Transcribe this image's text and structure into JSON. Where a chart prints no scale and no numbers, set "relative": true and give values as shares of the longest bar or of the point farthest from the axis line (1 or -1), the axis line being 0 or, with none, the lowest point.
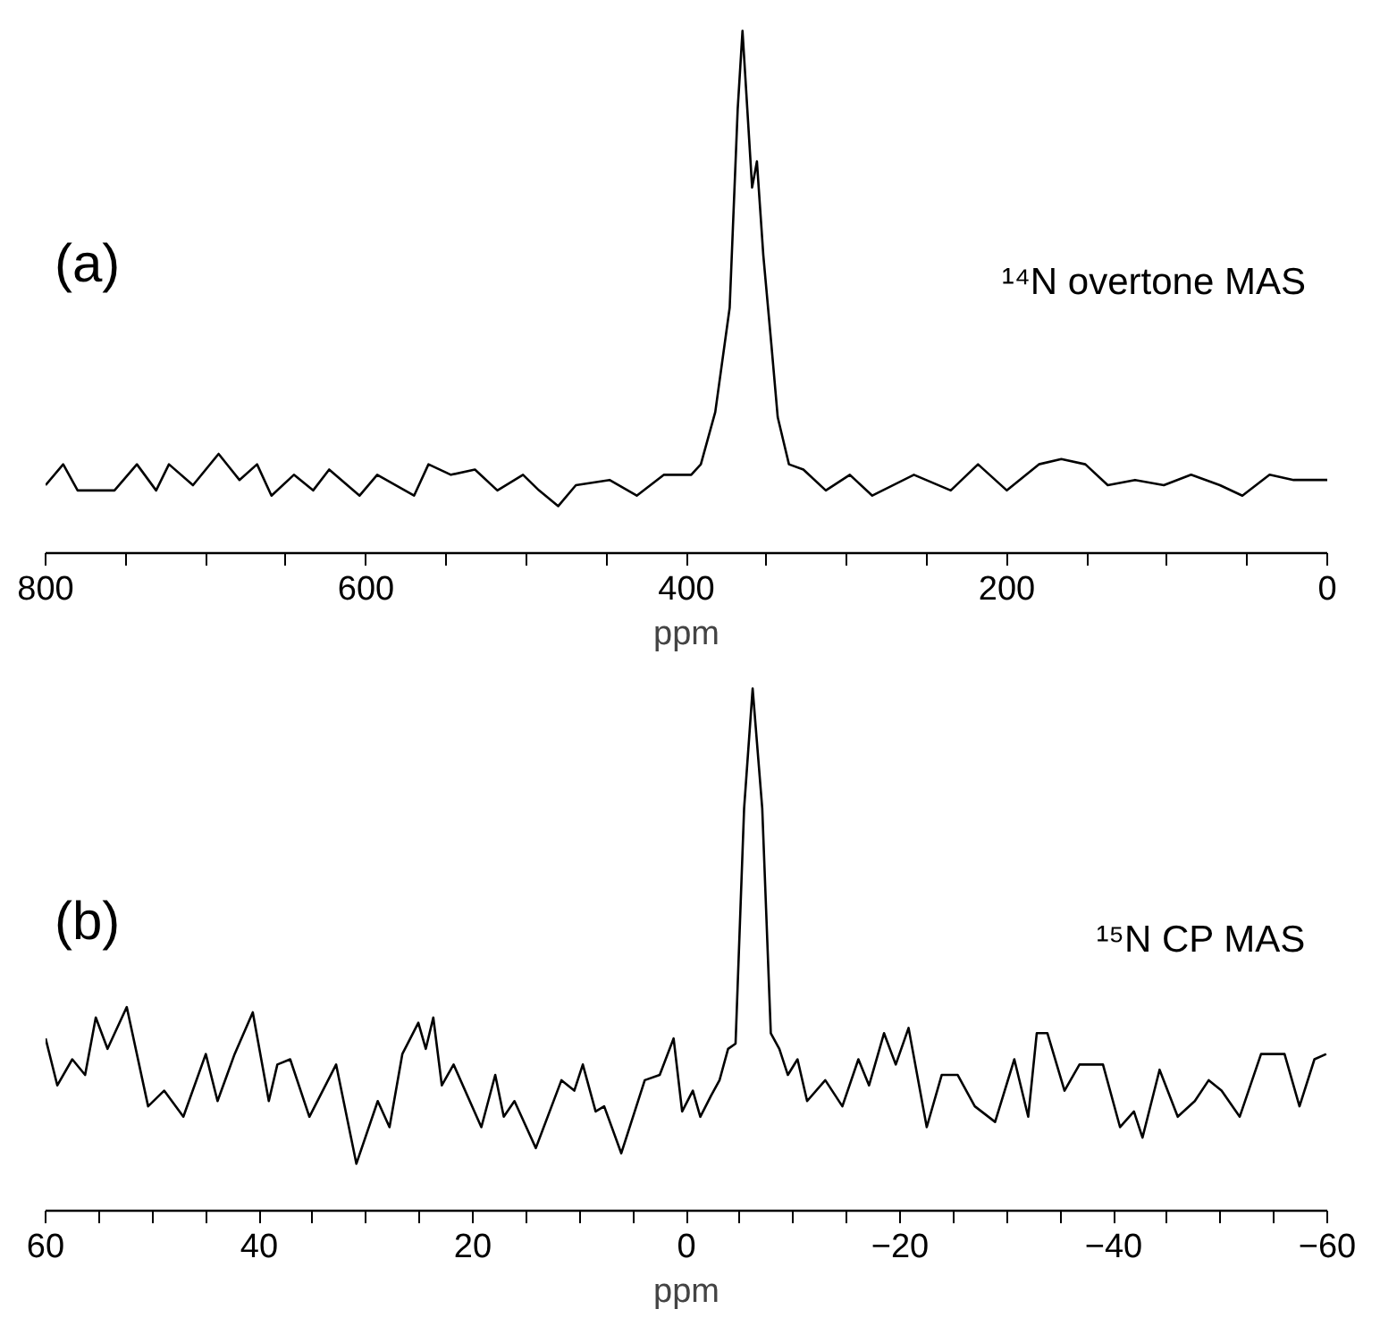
{
  "chart_data": [
    {
      "type": "line",
      "relative": true,
      "xlabel": "ppm",
      "annotations": [
        "(a)",
        "¹⁴N overtone MAS"
      ],
      "xlim": [
        800,
        0
      ],
      "xticks": [
        800,
        600,
        400,
        200,
        0
      ],
      "x": [
        800,
        789,
        780,
        757,
        743,
        731,
        723,
        708,
        692,
        679,
        668,
        659,
        645,
        633,
        623,
        604,
        593,
        570,
        561,
        547,
        532,
        518,
        502,
        492,
        480,
        469,
        448,
        431,
        414,
        397,
        391,
        382,
        373,
        368,
        365,
        362,
        359,
        356,
        352,
        347,
        343,
        336,
        327,
        313,
        298,
        284,
        258,
        235,
        218,
        200,
        180,
        166,
        151,
        137,
        120,
        102,
        85,
        67,
        53,
        36,
        21,
        0
      ],
      "series": [
        {
          "color": "#000000",
          "values": [
            0.13,
            0.17,
            0.12,
            0.12,
            0.17,
            0.12,
            0.17,
            0.13,
            0.19,
            0.14,
            0.17,
            0.11,
            0.15,
            0.12,
            0.16,
            0.11,
            0.15,
            0.11,
            0.17,
            0.15,
            0.16,
            0.12,
            0.15,
            0.12,
            0.09,
            0.13,
            0.14,
            0.11,
            0.15,
            0.15,
            0.17,
            0.27,
            0.47,
            0.85,
            1.0,
            0.85,
            0.7,
            0.75,
            0.57,
            0.4,
            0.26,
            0.17,
            0.16,
            0.12,
            0.15,
            0.11,
            0.15,
            0.12,
            0.17,
            0.12,
            0.17,
            0.18,
            0.17,
            0.13,
            0.14,
            0.13,
            0.15,
            0.13,
            0.11,
            0.15,
            0.14,
            0.14
          ]
        }
      ]
    },
    {
      "type": "line",
      "relative": true,
      "xlabel": "ppm",
      "annotations": [
        "(b)",
        "¹⁵N CP MAS"
      ],
      "xlim": [
        60,
        -60
      ],
      "xticks": [
        60,
        40,
        20,
        0,
        -20,
        -40,
        -60
      ],
      "x": [
        60,
        58.9,
        57.5,
        56.3,
        55.3,
        54.2,
        52.4,
        50.4,
        48.9,
        47.1,
        45,
        43.9,
        42.3,
        40.6,
        39.1,
        38.3,
        37.1,
        35.3,
        32.8,
        30.9,
        28.9,
        27.8,
        26.6,
        25.1,
        24.4,
        23.7,
        22.9,
        21.8,
        19.2,
        17.9,
        17.1,
        16.1,
        14.1,
        11.7,
        10.5,
        9.7,
        8.5,
        7.7,
        6.1,
        3.9,
        2.5,
        1.2,
        0.4,
        -0.6,
        -1.3,
        -2.3,
        -3.1,
        -3.9,
        -4.6,
        -5.4,
        -6.2,
        -7.1,
        -7.9,
        -8.7,
        -9.5,
        -10.4,
        -11.3,
        -13,
        -14.6,
        -16.1,
        -17.1,
        -18.5,
        -19.6,
        -20.8,
        -22.5,
        -23.9,
        -25.4,
        -27,
        -28.9,
        -30.7,
        -32,
        -32.8,
        -33.8,
        -35.4,
        -36.8,
        -39,
        -40.6,
        -41.9,
        -42.7,
        -44.3,
        -46,
        -47.6,
        -48.9,
        -50.1,
        -51.8,
        -53.8,
        -56,
        -57.4,
        -58.8,
        -59.9
      ],
      "series": [
        {
          "color": "#000000",
          "values": [
            0.33,
            0.24,
            0.29,
            0.26,
            0.37,
            0.31,
            0.39,
            0.2,
            0.23,
            0.18,
            0.3,
            0.21,
            0.3,
            0.38,
            0.21,
            0.28,
            0.29,
            0.18,
            0.28,
            0.09,
            0.21,
            0.16,
            0.3,
            0.36,
            0.31,
            0.37,
            0.24,
            0.28,
            0.16,
            0.26,
            0.18,
            0.21,
            0.12,
            0.25,
            0.23,
            0.28,
            0.19,
            0.2,
            0.11,
            0.25,
            0.26,
            0.33,
            0.19,
            0.23,
            0.18,
            0.22,
            0.25,
            0.31,
            0.32,
            0.77,
            1.0,
            0.77,
            0.34,
            0.31,
            0.26,
            0.29,
            0.21,
            0.25,
            0.2,
            0.29,
            0.24,
            0.34,
            0.28,
            0.35,
            0.16,
            0.26,
            0.26,
            0.2,
            0.17,
            0.29,
            0.18,
            0.34,
            0.34,
            0.23,
            0.28,
            0.28,
            0.16,
            0.19,
            0.14,
            0.27,
            0.18,
            0.21,
            0.25,
            0.23,
            0.18,
            0.3,
            0.3,
            0.2,
            0.29,
            0.3
          ]
        }
      ]
    }
  ]
}
